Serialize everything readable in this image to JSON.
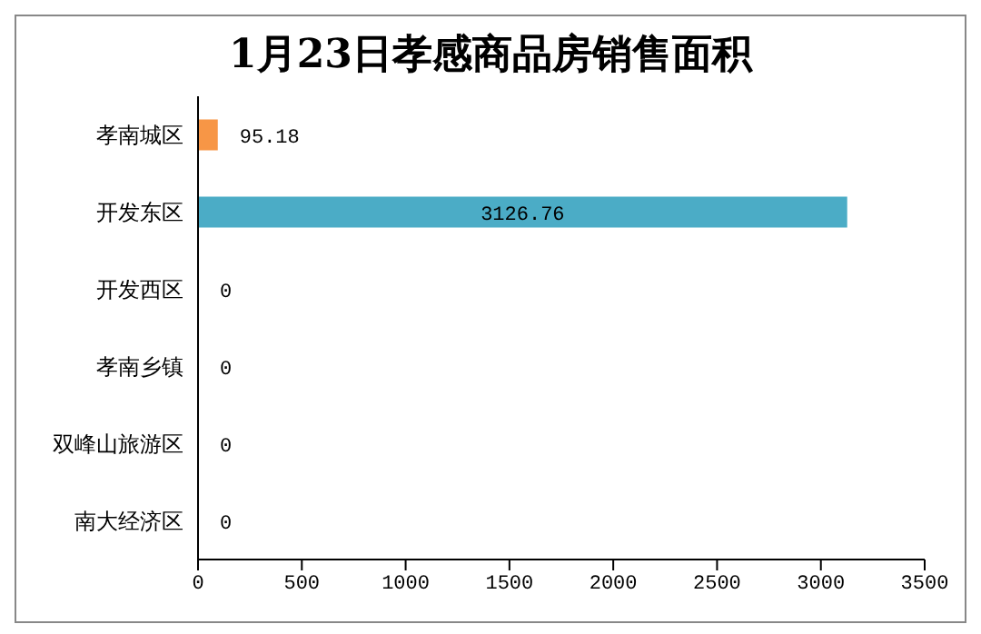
{
  "chart_data": {
    "type": "bar",
    "orientation": "horizontal",
    "title": "1月23日孝感商品房销售面积",
    "categories": [
      "孝南城区",
      "开发东区",
      "开发西区",
      "孝南乡镇",
      "双峰山旅游区",
      "南大经济区"
    ],
    "values": [
      95.18,
      3126.76,
      0,
      0,
      0,
      0
    ],
    "colors": [
      "#f79646",
      "#4bacc6",
      null,
      null,
      null,
      null
    ],
    "xlim": [
      0,
      3500
    ],
    "xticks": [
      0,
      500,
      1000,
      1500,
      2000,
      2500,
      3000,
      3500
    ],
    "data_labels": true,
    "grid": false,
    "legend": false
  }
}
